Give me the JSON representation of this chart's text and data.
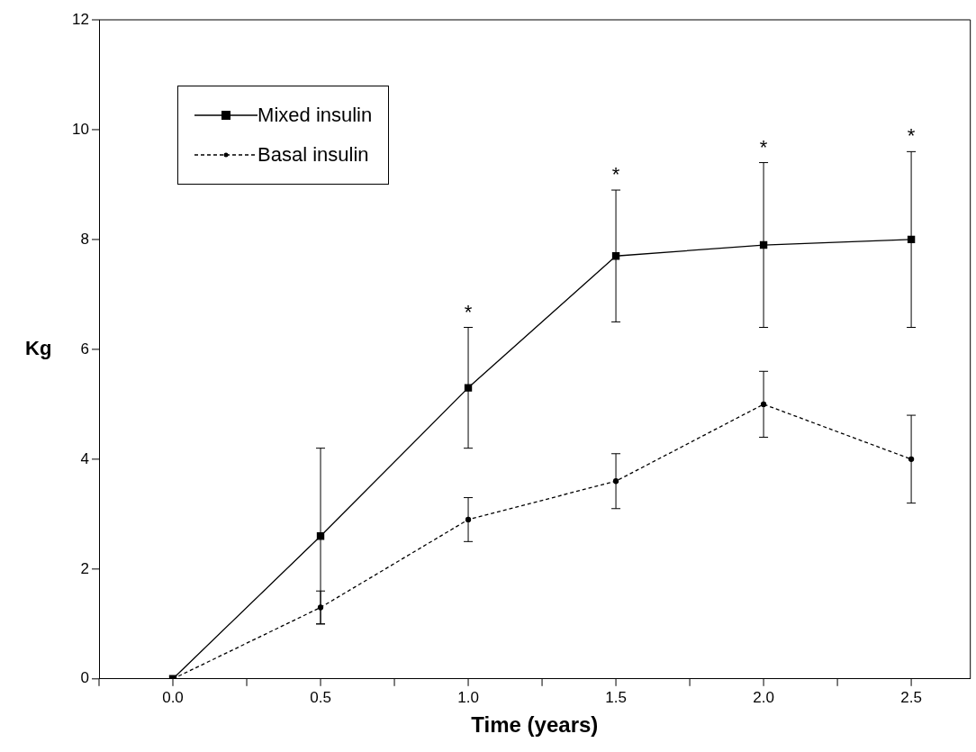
{
  "chart_data": {
    "type": "line",
    "xlabel": "Time (years)",
    "ylabel": "Kg",
    "x": [
      0,
      0.5,
      1,
      1.5,
      2,
      2.5
    ],
    "series": [
      {
        "name": "Mixed insulin",
        "color": "#000000",
        "marker": "square",
        "line_style": "solid",
        "values": [
          0,
          2.6,
          5.3,
          7.7,
          7.9,
          8.0
        ],
        "errors": [
          null,
          1.6,
          1.1,
          1.2,
          1.5,
          1.6
        ]
      },
      {
        "name": "Basal insulin",
        "color": "#000000",
        "marker": "circle",
        "line_style": "dashed",
        "values": [
          0,
          1.3,
          2.9,
          3.6,
          5.0,
          4.0
        ],
        "errors": [
          null,
          0.3,
          0.4,
          0.5,
          0.6,
          0.8
        ]
      }
    ],
    "xlim": [
      -0.25,
      2.7
    ],
    "xticks": [
      {
        "value": -0.25,
        "label": null
      },
      {
        "value": 0,
        "label": "0.0"
      },
      {
        "value": 0.25,
        "label": null
      },
      {
        "value": 0.5,
        "label": "0.5"
      },
      {
        "value": 0.75,
        "label": null
      },
      {
        "value": 1,
        "label": "1.0"
      },
      {
        "value": 1.25,
        "label": null
      },
      {
        "value": 1.5,
        "label": "1.5"
      },
      {
        "value": 1.75,
        "label": null
      },
      {
        "value": 2,
        "label": "2.0"
      },
      {
        "value": 2.25,
        "label": null
      },
      {
        "value": 2.5,
        "label": "2.5"
      }
    ],
    "ylim": [
      0,
      12
    ],
    "yticks": [
      0,
      2,
      4,
      6,
      8,
      10,
      12
    ],
    "annotations": [
      {
        "text": "*",
        "x": 1,
        "y": 6.4
      },
      {
        "text": "*",
        "x": 1.5,
        "y": 8.9
      },
      {
        "text": "*",
        "x": 2,
        "y": 9.4
      },
      {
        "text": "*",
        "x": 2.5,
        "y": 9.6
      }
    ],
    "grid": false,
    "legend": "top left"
  }
}
